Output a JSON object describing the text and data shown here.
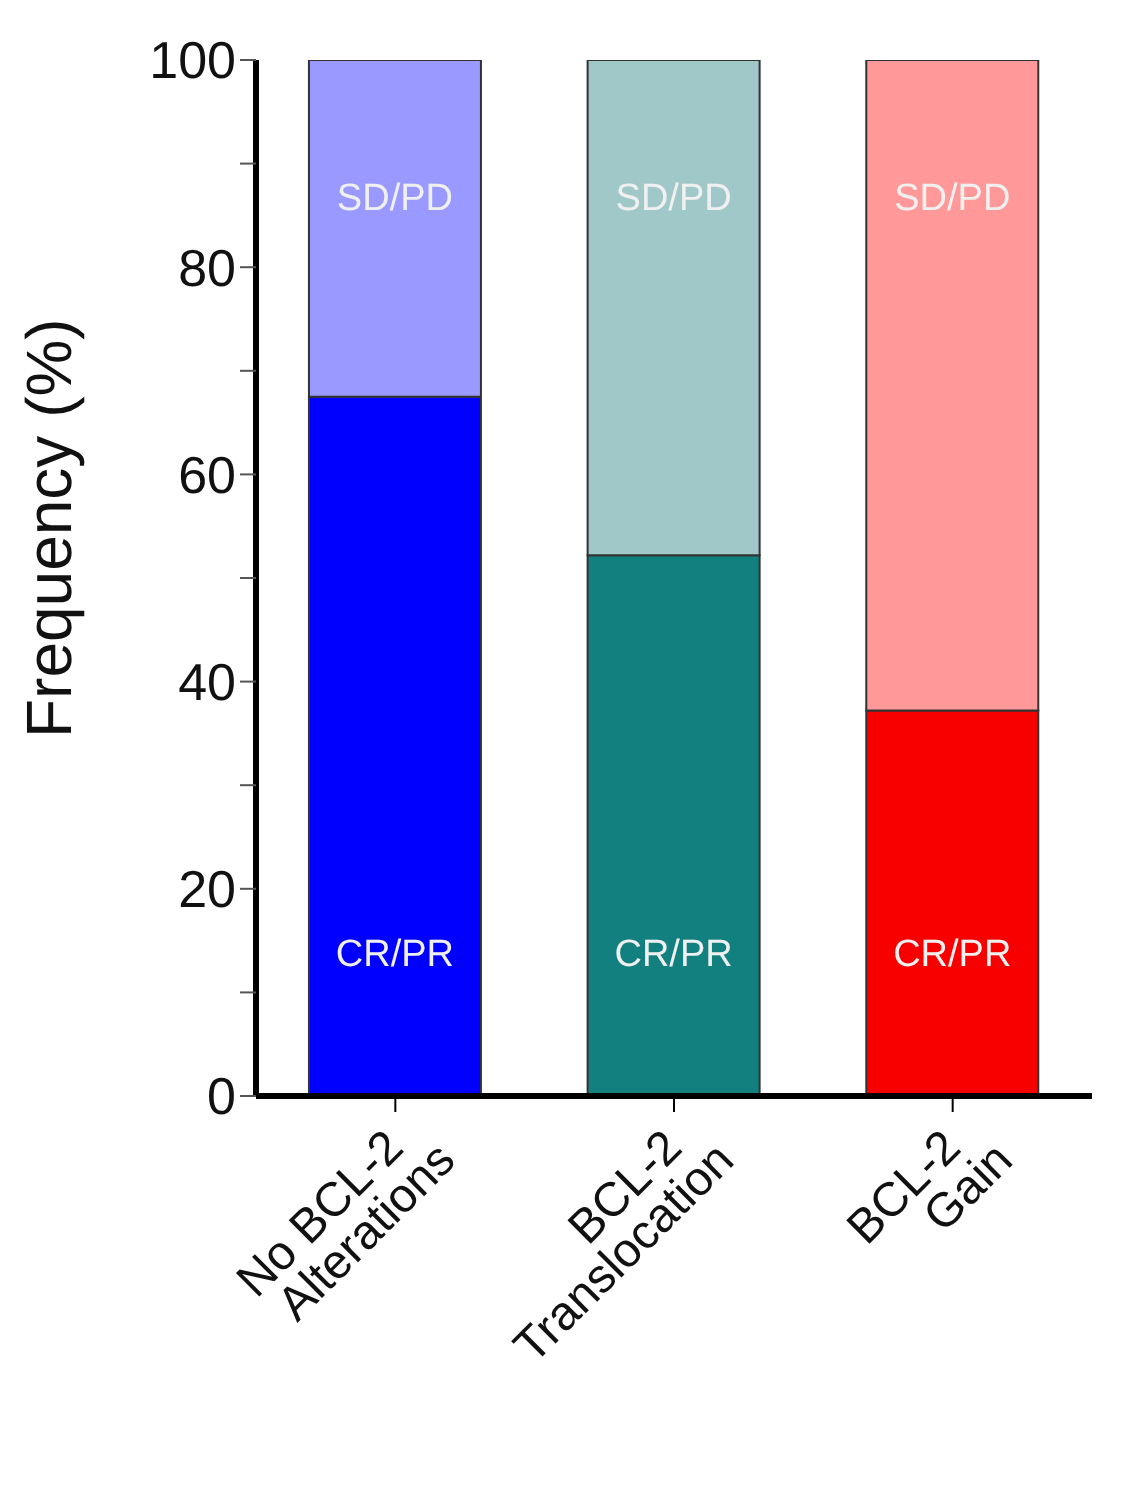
{
  "chart_data": {
    "type": "bar",
    "stacked": true,
    "ylabel": "Frequency (%)",
    "categories": [
      "No BCL-2\nAlterations",
      "BCL-2\nTranslocation",
      "BCL-2\nGain"
    ],
    "series": [
      {
        "name": "CR/PR",
        "colors": [
          "#0000ff",
          "#138080",
          "#f80000"
        ],
        "values": [
          67.5,
          52.2,
          37.2
        ]
      },
      {
        "name": "SD/PD",
        "colors": [
          "#9999ff",
          "#a0c8c8",
          "#ff9999"
        ],
        "values": [
          32.5,
          47.8,
          62.8
        ]
      }
    ],
    "ylim": [
      0,
      100
    ],
    "yticks": [
      0,
      {
        "value": 10,
        "label": null
      },
      20,
      {
        "value": 30,
        "label": null
      },
      40,
      {
        "value": 50,
        "label": null
      },
      60,
      {
        "value": 70,
        "label": null
      },
      80,
      {
        "value": 90,
        "label": null
      },
      100
    ],
    "grid": false,
    "legend": false
  }
}
